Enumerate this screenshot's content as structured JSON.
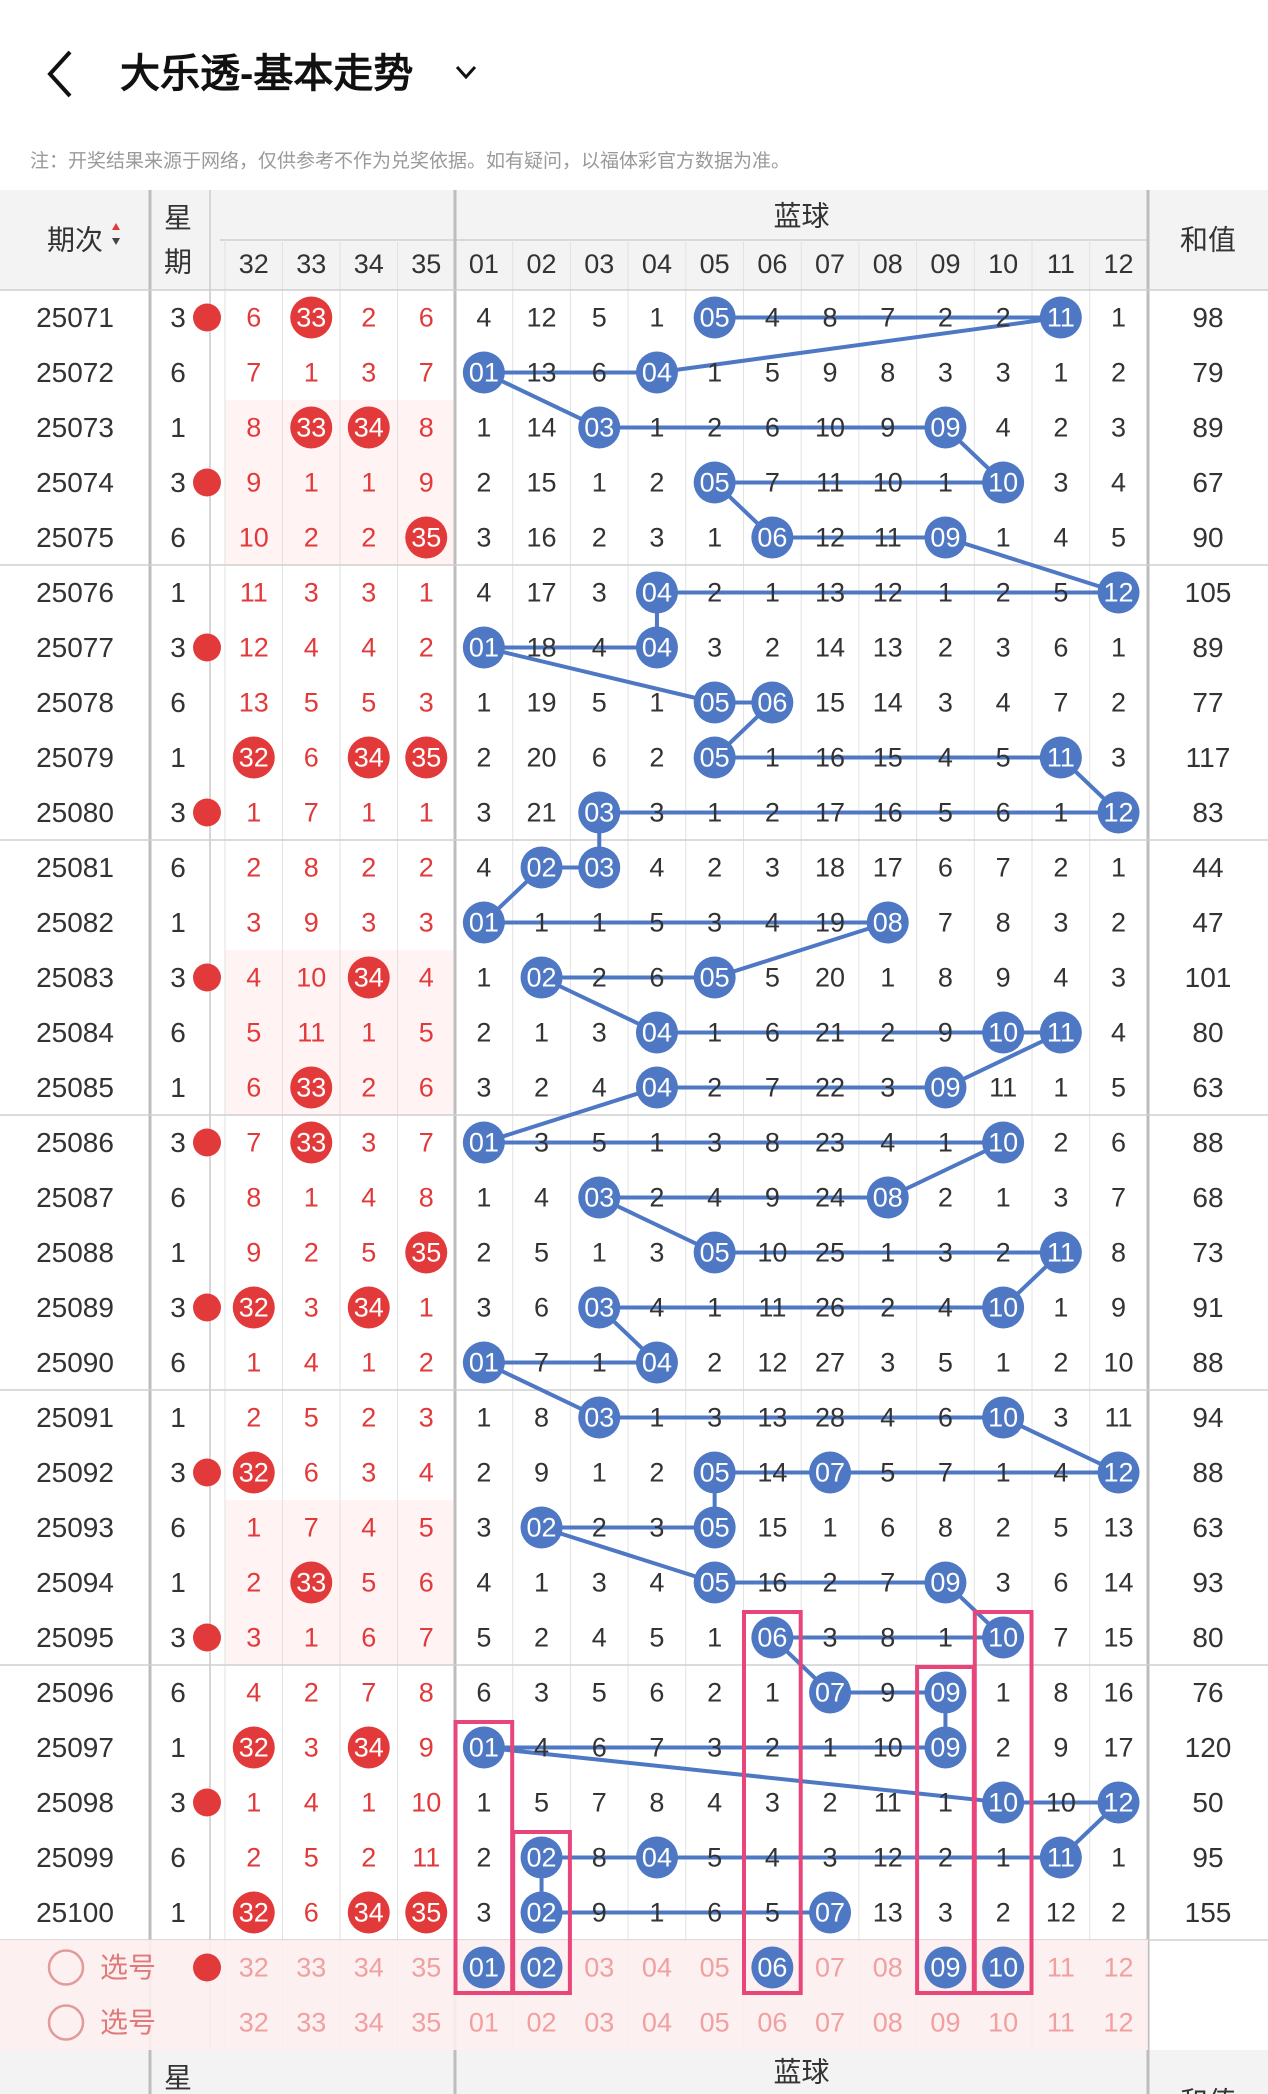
{
  "header": {
    "title": "大乐透-基本走势",
    "note": "注：开奖结果来源于网络，仅供参考不作为兑奖依据。如有疑问，以福体彩官方数据为准。"
  },
  "table": {
    "col_issue": "期次",
    "col_week": "星期",
    "col_blue_group": "蓝球",
    "col_sum": "和值",
    "front_numbers": [
      "32",
      "33",
      "34",
      "35"
    ],
    "blue_numbers": [
      "01",
      "02",
      "03",
      "04",
      "05",
      "06",
      "07",
      "08",
      "09",
      "10",
      "11",
      "12"
    ],
    "rows": [
      {
        "issue": "25071",
        "week": "3",
        "front": [
          "6",
          "33",
          "2",
          "6"
        ],
        "blue": [
          "4",
          "12",
          "5",
          "1",
          "05",
          "4",
          "8",
          "7",
          "2",
          "2",
          "11",
          "1"
        ],
        "sum": "98"
      },
      {
        "issue": "25072",
        "week": "6",
        "front": [
          "7",
          "1",
          "3",
          "7"
        ],
        "blue": [
          "01",
          "13",
          "6",
          "04",
          "1",
          "5",
          "9",
          "8",
          "3",
          "3",
          "1",
          "2"
        ],
        "sum": "79"
      },
      {
        "issue": "25073",
        "week": "1",
        "front": [
          "8",
          "33",
          "34",
          "8"
        ],
        "blue": [
          "1",
          "14",
          "03",
          "1",
          "2",
          "6",
          "10",
          "9",
          "09",
          "4",
          "2",
          "3"
        ],
        "sum": "89"
      },
      {
        "issue": "25074",
        "week": "3",
        "front": [
          "9",
          "1",
          "1",
          "9"
        ],
        "blue": [
          "2",
          "15",
          "1",
          "2",
          "05",
          "7",
          "11",
          "10",
          "1",
          "10",
          "3",
          "4"
        ],
        "sum": "67"
      },
      {
        "issue": "25075",
        "week": "6",
        "front": [
          "10",
          "2",
          "2",
          "35"
        ],
        "blue": [
          "3",
          "16",
          "2",
          "3",
          "1",
          "06",
          "12",
          "11",
          "09",
          "1",
          "4",
          "5"
        ],
        "sum": "90"
      },
      {
        "issue": "25076",
        "week": "1",
        "front": [
          "11",
          "3",
          "3",
          "1"
        ],
        "blue": [
          "4",
          "17",
          "3",
          "04",
          "2",
          "1",
          "13",
          "12",
          "1",
          "2",
          "5",
          "12"
        ],
        "sum": "105"
      },
      {
        "issue": "25077",
        "week": "3",
        "front": [
          "12",
          "4",
          "4",
          "2"
        ],
        "blue": [
          "01",
          "18",
          "4",
          "04",
          "3",
          "2",
          "14",
          "13",
          "2",
          "3",
          "6",
          "1"
        ],
        "sum": "89"
      },
      {
        "issue": "25078",
        "week": "6",
        "front": [
          "13",
          "5",
          "5",
          "3"
        ],
        "blue": [
          "1",
          "19",
          "5",
          "1",
          "05",
          "06",
          "15",
          "14",
          "3",
          "4",
          "7",
          "2"
        ],
        "sum": "77"
      },
      {
        "issue": "25079",
        "week": "1",
        "front": [
          "32",
          "6",
          "34",
          "35"
        ],
        "blue": [
          "2",
          "20",
          "6",
          "2",
          "05",
          "1",
          "16",
          "15",
          "4",
          "5",
          "11",
          "3"
        ],
        "sum": "117"
      },
      {
        "issue": "25080",
        "week": "3",
        "front": [
          "1",
          "7",
          "1",
          "1"
        ],
        "blue": [
          "3",
          "21",
          "03",
          "3",
          "1",
          "2",
          "17",
          "16",
          "5",
          "6",
          "1",
          "12"
        ],
        "sum": "83"
      },
      {
        "issue": "25081",
        "week": "6",
        "front": [
          "2",
          "8",
          "2",
          "2"
        ],
        "blue": [
          "4",
          "02",
          "03",
          "4",
          "2",
          "3",
          "18",
          "17",
          "6",
          "7",
          "2",
          "1"
        ],
        "sum": "44"
      },
      {
        "issue": "25082",
        "week": "1",
        "front": [
          "3",
          "9",
          "3",
          "3"
        ],
        "blue": [
          "01",
          "1",
          "1",
          "5",
          "3",
          "4",
          "19",
          "08",
          "7",
          "8",
          "3",
          "2"
        ],
        "sum": "47"
      },
      {
        "issue": "25083",
        "week": "3",
        "front": [
          "4",
          "10",
          "34",
          "4"
        ],
        "blue": [
          "1",
          "02",
          "2",
          "6",
          "05",
          "5",
          "20",
          "1",
          "8",
          "9",
          "4",
          "3"
        ],
        "sum": "101"
      },
      {
        "issue": "25084",
        "week": "6",
        "front": [
          "5",
          "11",
          "1",
          "5"
        ],
        "blue": [
          "2",
          "1",
          "3",
          "04",
          "1",
          "6",
          "21",
          "2",
          "9",
          "10",
          "11",
          "4"
        ],
        "sum": "80"
      },
      {
        "issue": "25085",
        "week": "1",
        "front": [
          "6",
          "33",
          "2",
          "6"
        ],
        "blue": [
          "3",
          "2",
          "4",
          "04",
          "2",
          "7",
          "22",
          "3",
          "09",
          "11",
          "1",
          "5"
        ],
        "sum": "63"
      },
      {
        "issue": "25086",
        "week": "3",
        "front": [
          "7",
          "33",
          "3",
          "7"
        ],
        "blue": [
          "01",
          "3",
          "5",
          "1",
          "3",
          "8",
          "23",
          "4",
          "1",
          "10",
          "2",
          "6"
        ],
        "sum": "88"
      },
      {
        "issue": "25087",
        "week": "6",
        "front": [
          "8",
          "1",
          "4",
          "8"
        ],
        "blue": [
          "1",
          "4",
          "03",
          "2",
          "4",
          "9",
          "24",
          "08",
          "2",
          "1",
          "3",
          "7"
        ],
        "sum": "68"
      },
      {
        "issue": "25088",
        "week": "1",
        "front": [
          "9",
          "2",
          "5",
          "35"
        ],
        "blue": [
          "2",
          "5",
          "1",
          "3",
          "05",
          "10",
          "25",
          "1",
          "3",
          "2",
          "11",
          "8"
        ],
        "sum": "73"
      },
      {
        "issue": "25089",
        "week": "3",
        "front": [
          "32",
          "3",
          "34",
          "1"
        ],
        "blue": [
          "3",
          "6",
          "03",
          "4",
          "1",
          "11",
          "26",
          "2",
          "4",
          "10",
          "1",
          "9"
        ],
        "sum": "91"
      },
      {
        "issue": "25090",
        "week": "6",
        "front": [
          "1",
          "4",
          "1",
          "2"
        ],
        "blue": [
          "01",
          "7",
          "1",
          "04",
          "2",
          "12",
          "27",
          "3",
          "5",
          "1",
          "2",
          "10"
        ],
        "sum": "88"
      },
      {
        "issue": "25091",
        "week": "1",
        "front": [
          "2",
          "5",
          "2",
          "3"
        ],
        "blue": [
          "1",
          "8",
          "03",
          "1",
          "3",
          "13",
          "28",
          "4",
          "6",
          "10",
          "3",
          "11"
        ],
        "sum": "94"
      },
      {
        "issue": "25092",
        "week": "3",
        "front": [
          "32",
          "6",
          "3",
          "4"
        ],
        "blue": [
          "2",
          "9",
          "1",
          "2",
          "05",
          "14",
          "07",
          "5",
          "7",
          "1",
          "4",
          "12"
        ],
        "sum": "88"
      },
      {
        "issue": "25093",
        "week": "6",
        "front": [
          "1",
          "7",
          "4",
          "5"
        ],
        "blue": [
          "3",
          "02",
          "2",
          "3",
          "05",
          "15",
          "1",
          "6",
          "8",
          "2",
          "5",
          "13"
        ],
        "sum": "63"
      },
      {
        "issue": "25094",
        "week": "1",
        "front": [
          "2",
          "33",
          "5",
          "6"
        ],
        "blue": [
          "4",
          "1",
          "3",
          "4",
          "05",
          "16",
          "2",
          "7",
          "09",
          "3",
          "6",
          "14"
        ],
        "sum": "93"
      },
      {
        "issue": "25095",
        "week": "3",
        "front": [
          "3",
          "1",
          "6",
          "7"
        ],
        "blue": [
          "5",
          "2",
          "4",
          "5",
          "1",
          "06",
          "3",
          "8",
          "1",
          "10",
          "7",
          "15"
        ],
        "sum": "80"
      },
      {
        "issue": "25096",
        "week": "6",
        "front": [
          "4",
          "2",
          "7",
          "8"
        ],
        "blue": [
          "6",
          "3",
          "5",
          "6",
          "2",
          "1",
          "07",
          "9",
          "09",
          "1",
          "8",
          "16"
        ],
        "sum": "76"
      },
      {
        "issue": "25097",
        "week": "1",
        "front": [
          "32",
          "3",
          "34",
          "9"
        ],
        "blue": [
          "01",
          "4",
          "6",
          "7",
          "3",
          "2",
          "1",
          "10",
          "09",
          "2",
          "9",
          "17"
        ],
        "sum": "120"
      },
      {
        "issue": "25098",
        "week": "3",
        "front": [
          "1",
          "4",
          "1",
          "10"
        ],
        "blue": [
          "1",
          "5",
          "7",
          "8",
          "4",
          "3",
          "2",
          "11",
          "1",
          "10",
          "10",
          "12"
        ],
        "sum": "50"
      },
      {
        "issue": "25099",
        "week": "6",
        "front": [
          "2",
          "5",
          "2",
          "11"
        ],
        "blue": [
          "2",
          "02",
          "8",
          "04",
          "5",
          "4",
          "3",
          "12",
          "2",
          "1",
          "11",
          "1"
        ],
        "sum": "95"
      },
      {
        "issue": "25100",
        "week": "1",
        "front": [
          "32",
          "6",
          "34",
          "35"
        ],
        "blue": [
          "3",
          "02",
          "9",
          "1",
          "6",
          "5",
          "07",
          "13",
          "3",
          "2",
          "12",
          "2"
        ],
        "sum": "155"
      }
    ],
    "pick_label": "选号",
    "selected_blue": [
      "01",
      "02",
      "06",
      "09",
      "10"
    ]
  },
  "colors": {
    "red": "#e23a3a",
    "blue": "#4e77c4",
    "pink_box": "#e8457a",
    "header_bg": "#f3f3f3",
    "pick_bg": "#fdeeee"
  }
}
